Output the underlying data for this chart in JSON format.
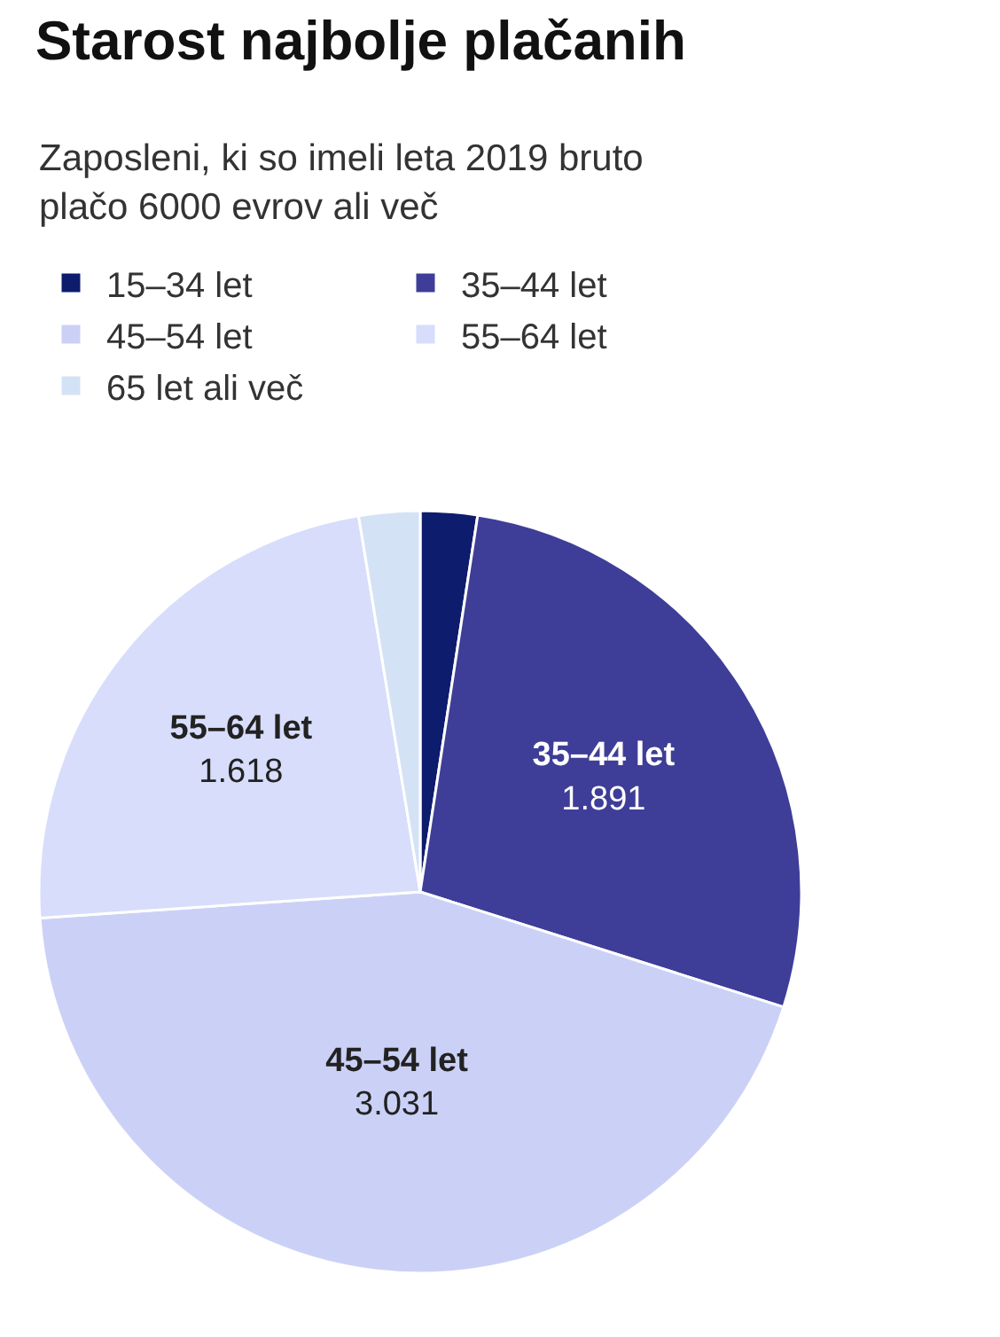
{
  "chart_data": {
    "type": "pie",
    "title": "Starost najbolje plačanih",
    "subtitle": "Zaposleni, ki so imeli leta 2019 bruto plačo 6000 evrov ali več",
    "categories": [
      "15–34 let",
      "35–44 let",
      "45–54 let",
      "55–64 let",
      "65 let ali več"
    ],
    "values": [
      166,
      1891,
      3031,
      1618,
      178
    ],
    "value_labels": [
      null,
      "1.891",
      "3.031",
      "1.618",
      null
    ],
    "colors": [
      "#0e1c6e",
      "#3e3e98",
      "#cbd1f6",
      "#d7ddfb",
      "#d4e2f6"
    ],
    "legend": "top left"
  }
}
